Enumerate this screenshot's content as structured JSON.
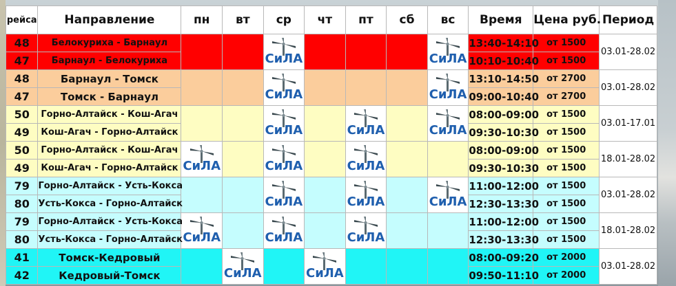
{
  "header": {
    "flight": "рейса",
    "direction": "Направление",
    "days": [
      "пн",
      "вт",
      "ср",
      "чт",
      "пт",
      "сб",
      "вс"
    ],
    "time": "Время",
    "price": "Цена руб.",
    "period": "Период"
  },
  "logo_text": "СиЛА",
  "rows": [
    {
      "flight": "48",
      "route": "Белокуриха - Барнаул",
      "time": "13:40-14:10",
      "price": "от 1500"
    },
    {
      "flight": "47",
      "route": "Барнаул - Белокуриха",
      "time": "10:10-10:40",
      "price": "от 1500"
    },
    {
      "flight": "48",
      "route": "Барнаул - Томск",
      "time": "13:10-14:50",
      "price": "от 2700"
    },
    {
      "flight": "47",
      "route": "Томск - Барнаул",
      "time": "09:00-10:40",
      "price": "от 2700"
    },
    {
      "flight": "50",
      "route": "Горно-Алтайск - Кош-Агач",
      "time": "08:00-09:00",
      "price": "от 1500"
    },
    {
      "flight": "49",
      "route": "Кош-Агач - Горно-Алтайск",
      "time": "09:30-10:30",
      "price": "от 1500"
    },
    {
      "flight": "50",
      "route": "Горно-Алтайск - Кош-Агач",
      "time": "08:00-09:00",
      "price": "от 1500"
    },
    {
      "flight": "49",
      "route": "Кош-Агач - Горно-Алтайск",
      "time": "09:30-10:30",
      "price": "от 1500"
    },
    {
      "flight": "79",
      "route": "Горно-Алтайск - Усть-Кокса",
      "time": "11:00-12:00",
      "price": "от 1500"
    },
    {
      "flight": "80",
      "route": "Усть-Кокса - Горно-Алтайск",
      "time": "12:30-13:30",
      "price": "от 1500"
    },
    {
      "flight": "79",
      "route": "Горно-Алтайск - Усть-Кокса",
      "time": "11:00-12:00",
      "price": "от 1500"
    },
    {
      "flight": "80",
      "route": "Усть-Кокса - Горно-Алтайск",
      "time": "12:30-13:30",
      "price": "от 1500"
    },
    {
      "flight": "41",
      "route": "Томск-Кедровый",
      "time": "08:00-09:20",
      "price": "от 2000"
    },
    {
      "flight": "42",
      "route": "Кедровый-Томск",
      "time": "09:50-11:10",
      "price": "от 2000"
    }
  ],
  "periods": [
    "03.01-28.02",
    "03.01-28.02",
    "03.01-17.01",
    "18.01-28.02",
    "03.01-28.02",
    "18.01-28.02",
    "03.01-28.02"
  ],
  "colors": {
    "red": "#ff0000",
    "peach": "#fbcd9c",
    "yellow": "#fefdc2",
    "light_cyan": "#c5fdfe",
    "cyan": "#20f5f6",
    "logo_blue": "#1f5fae"
  }
}
